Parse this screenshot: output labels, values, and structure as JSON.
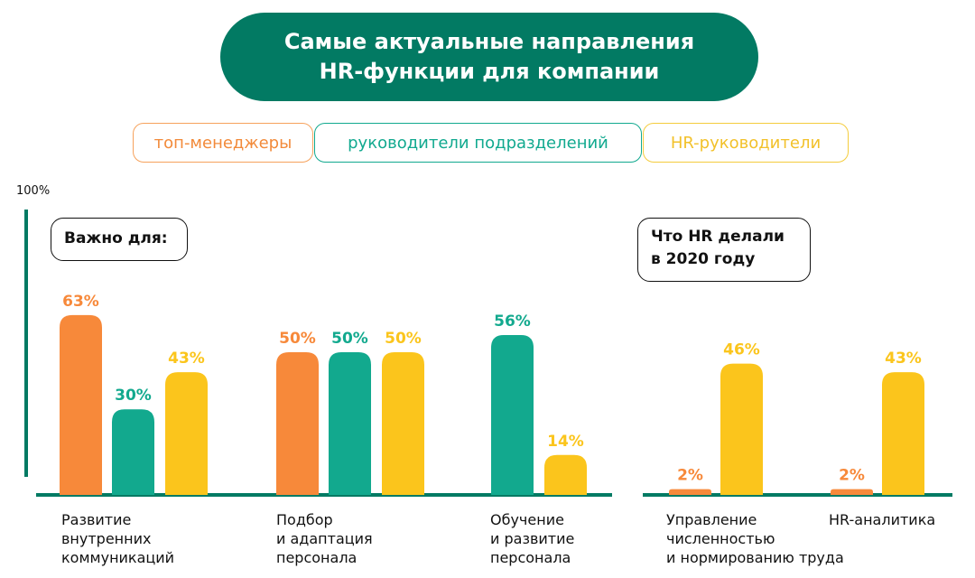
{
  "title": {
    "line1": "Самые актуальные направления",
    "line2": "HR-функции для компании"
  },
  "legend": [
    "топ-менеджеры",
    "руководители подразделений",
    "HR-руководители"
  ],
  "y_max_label": "100%",
  "note_important": "Важно для:",
  "note_2020": {
    "line1": "Что HR делали",
    "line2": "в 2020 году"
  },
  "colors": {
    "orange": "#f7893a",
    "teal": "#12a98e",
    "yellow": "#fbc51c",
    "axis": "#027a63"
  },
  "chart_data": [
    {
      "type": "bar",
      "title": "",
      "ylim": [
        0,
        100
      ],
      "categories": [
        "Развитие внутренних коммуникаций",
        "Подбор и адаптация персонала",
        "Обучение и развитие персонала"
      ],
      "series": [
        {
          "name": "топ-менеджеры",
          "values": [
            63,
            50,
            null
          ]
        },
        {
          "name": "руководители подразделений",
          "values": [
            30,
            50,
            56
          ]
        },
        {
          "name": "HR-руководители",
          "values": [
            43,
            50,
            14
          ]
        }
      ]
    },
    {
      "type": "bar",
      "title": "",
      "ylim": [
        0,
        100
      ],
      "categories": [
        "Управление численностью и нормированию труда",
        "HR-аналитика"
      ],
      "series": [
        {
          "name": "топ-менеджеры",
          "values": [
            2,
            2
          ]
        },
        {
          "name": "HR-руководители",
          "values": [
            46,
            43
          ]
        }
      ]
    }
  ],
  "category_labels": [
    [
      "Развитие",
      "внутренних",
      "коммуникаций"
    ],
    [
      "Подбор",
      "и адаптация",
      "персонала"
    ],
    [
      "Обучение",
      "и развитие",
      "персонала"
    ],
    [
      "Управление",
      "численностью",
      "и нормированию труда"
    ],
    [
      "HR-аналитика"
    ]
  ]
}
